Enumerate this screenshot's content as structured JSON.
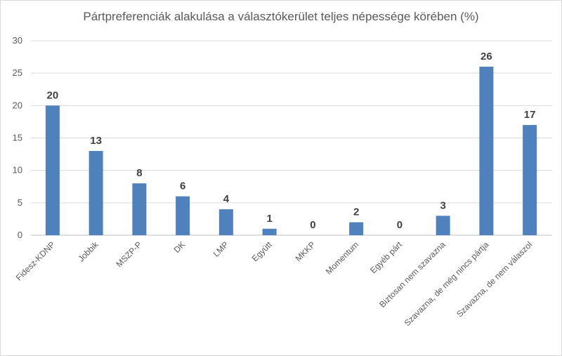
{
  "chart_data": {
    "type": "bar",
    "title": "Pártpreferenciák alakulása a választókerület teljes népessége körében (%)",
    "categories": [
      "Fidesz-KDNP",
      "Jobbik",
      "MSZP-P",
      "DK",
      "LMP",
      "Együtt",
      "MKKP",
      "Momentum",
      "Egyéb párt",
      "Biztosan nem szavazna",
      "Szavazna, de még nincs pártja",
      "Szavazna, de nem válaszol"
    ],
    "values": [
      20,
      13,
      8,
      6,
      4,
      1,
      0,
      2,
      0,
      3,
      26,
      17
    ],
    "data_labels": [
      "20",
      "13",
      "8",
      "6",
      "4",
      "1",
      "0",
      "2",
      "0",
      "3",
      "26",
      "17"
    ],
    "ylim": [
      0,
      30
    ],
    "yticks": [
      "0",
      "5",
      "10",
      "15",
      "20",
      "25",
      "30"
    ],
    "grid": true,
    "bar_color": "#4f81bd"
  }
}
